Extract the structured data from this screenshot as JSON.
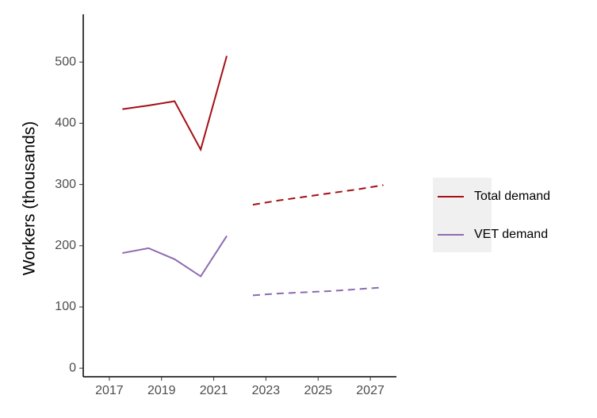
{
  "chart_data": {
    "type": "line",
    "y_label": "Workers (thousands)",
    "x": [
      2017.5,
      2018.5,
      2019.5,
      2020.5,
      2021.5,
      2022.5,
      2023.5,
      2024.5,
      2025.5,
      2026.5,
      2027.5
    ],
    "series": [
      {
        "name": "Total demand",
        "color": "#a50f15",
        "values": [
          423,
          429,
          436,
          357,
          510,
          null,
          null,
          null,
          null,
          null,
          null
        ],
        "projection": [
          null,
          null,
          null,
          null,
          null,
          267,
          274,
          280,
          286,
          292,
          299
        ]
      },
      {
        "name": "VET demand",
        "color": "#8c6bb1",
        "values": [
          188,
          196,
          178,
          150,
          216,
          null,
          null,
          null,
          null,
          null,
          null
        ],
        "projection": [
          null,
          null,
          null,
          null,
          null,
          119,
          122,
          124,
          126,
          129,
          132
        ]
      }
    ],
    "xlim": [
      2016,
      2028
    ],
    "xticks": [
      2017,
      2019,
      2021,
      2023,
      2025,
      2027
    ],
    "ylim": [
      -14,
      578
    ],
    "yticks": [
      0,
      100,
      200,
      300,
      400,
      500
    ],
    "grid": false,
    "legend": "right"
  }
}
